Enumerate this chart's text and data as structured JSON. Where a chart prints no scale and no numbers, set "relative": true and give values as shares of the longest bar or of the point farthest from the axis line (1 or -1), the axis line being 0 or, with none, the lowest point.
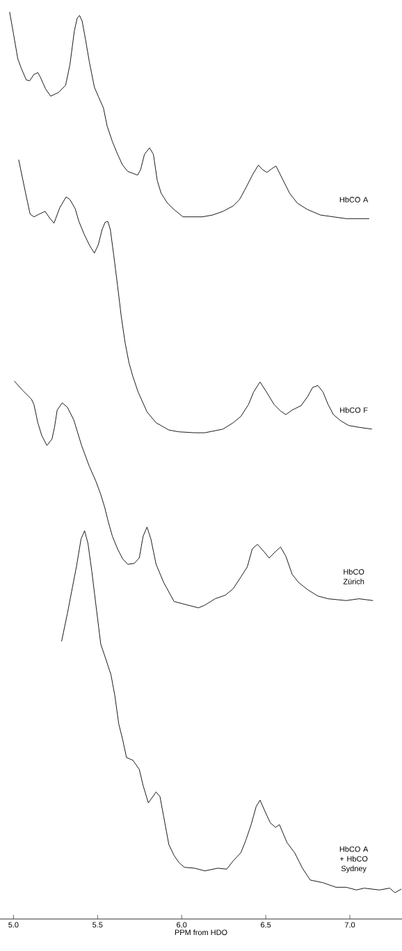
{
  "chart_data": {
    "type": "line",
    "relative": true,
    "xlabel": "PPM   from   HDO",
    "xlim": [
      4.92,
      7.31
    ],
    "xticks": [
      {
        "value": 5,
        "label": "5.0"
      },
      5.5,
      {
        "value": 6,
        "label": "6.0"
      },
      6.5,
      {
        "value": 7,
        "label": "7.0"
      }
    ],
    "series": [
      {
        "name": "HbCO A",
        "color": "#000000",
        "x": [
          4.977,
          5.0,
          5.026,
          5.046,
          5.076,
          5.096,
          5.122,
          5.145,
          5.16,
          5.191,
          5.221,
          5.267,
          5.31,
          5.336,
          5.362,
          5.379,
          5.393,
          5.408,
          5.428,
          5.451,
          5.481,
          5.504,
          5.535,
          5.557,
          5.588,
          5.619,
          5.649,
          5.68,
          5.71,
          5.738,
          5.756,
          5.779,
          5.809,
          5.832,
          5.855,
          5.878,
          5.916,
          5.955,
          6.008,
          6.077,
          6.123,
          6.184,
          6.245,
          6.306,
          6.344,
          6.382,
          6.42,
          6.456,
          6.481,
          6.507,
          6.535,
          6.561,
          6.596,
          6.642,
          6.688,
          6.749,
          6.825,
          6.902,
          6.978,
          7.054,
          7.115
        ],
        "values": [
          1.0,
          0.976,
          0.948,
          0.938,
          0.925,
          0.924,
          0.931,
          0.933,
          0.928,
          0.915,
          0.907,
          0.911,
          0.919,
          0.942,
          0.979,
          0.993,
          0.996,
          0.99,
          0.97,
          0.945,
          0.917,
          0.907,
          0.894,
          0.874,
          0.857,
          0.843,
          0.831,
          0.824,
          0.822,
          0.82,
          0.826,
          0.843,
          0.85,
          0.843,
          0.814,
          0.8,
          0.789,
          0.782,
          0.774,
          0.774,
          0.774,
          0.776,
          0.78,
          0.786,
          0.793,
          0.806,
          0.82,
          0.831,
          0.826,
          0.823,
          0.827,
          0.83,
          0.817,
          0.8,
          0.789,
          0.782,
          0.776,
          0.774,
          0.772,
          0.772,
          0.772
        ]
      },
      {
        "name": "HbCO F",
        "color": "#000000",
        "x": [
          5.031,
          5.069,
          5.099,
          5.122,
          5.153,
          5.188,
          5.214,
          5.241,
          5.275,
          5.313,
          5.336,
          5.367,
          5.389,
          5.42,
          5.451,
          5.481,
          5.504,
          5.527,
          5.545,
          5.561,
          5.576,
          5.596,
          5.619,
          5.641,
          5.664,
          5.687,
          5.71,
          5.741,
          5.794,
          5.848,
          5.924,
          5.985,
          6.077,
          6.138,
          6.245,
          6.306,
          6.352,
          6.397,
          6.428,
          6.466,
          6.504,
          6.55,
          6.588,
          6.619,
          6.657,
          6.711,
          6.749,
          6.779,
          6.81,
          6.84,
          6.871,
          6.902,
          6.947,
          6.993,
          7.054,
          7.131
        ],
        "values": [
          0.837,
          0.803,
          0.777,
          0.774,
          0.777,
          0.78,
          0.773,
          0.767,
          0.784,
          0.796,
          0.793,
          0.783,
          0.769,
          0.755,
          0.743,
          0.734,
          0.743,
          0.76,
          0.768,
          0.769,
          0.76,
          0.732,
          0.698,
          0.664,
          0.635,
          0.613,
          0.598,
          0.581,
          0.559,
          0.547,
          0.539,
          0.537,
          0.536,
          0.536,
          0.54,
          0.547,
          0.554,
          0.567,
          0.581,
          0.592,
          0.581,
          0.567,
          0.56,
          0.556,
          0.561,
          0.566,
          0.576,
          0.586,
          0.588,
          0.581,
          0.567,
          0.556,
          0.549,
          0.544,
          0.542,
          0.54
        ]
      },
      {
        "name": "HbCO Zürich",
        "color": "#000000",
        "x": [
          5.005,
          5.053,
          5.107,
          5.122,
          5.145,
          5.168,
          5.199,
          5.229,
          5.244,
          5.26,
          5.29,
          5.321,
          5.359,
          5.405,
          5.451,
          5.489,
          5.519,
          5.542,
          5.565,
          5.588,
          5.619,
          5.649,
          5.68,
          5.718,
          5.748,
          5.771,
          5.794,
          5.817,
          5.848,
          5.893,
          5.955,
          6.016,
          6.1,
          6.138,
          6.199,
          6.26,
          6.306,
          6.352,
          6.39,
          6.42,
          6.451,
          6.489,
          6.52,
          6.558,
          6.588,
          6.619,
          6.657,
          6.695,
          6.749,
          6.81,
          6.871,
          6.978,
          7.054,
          7.138
        ],
        "values": [
          0.593,
          0.583,
          0.573,
          0.567,
          0.547,
          0.533,
          0.522,
          0.529,
          0.542,
          0.561,
          0.569,
          0.564,
          0.55,
          0.522,
          0.499,
          0.483,
          0.468,
          0.454,
          0.437,
          0.422,
          0.408,
          0.397,
          0.391,
          0.392,
          0.398,
          0.422,
          0.432,
          0.419,
          0.391,
          0.371,
          0.35,
          0.347,
          0.343,
          0.346,
          0.353,
          0.357,
          0.364,
          0.377,
          0.388,
          0.408,
          0.413,
          0.405,
          0.398,
          0.405,
          0.41,
          0.4,
          0.38,
          0.371,
          0.363,
          0.356,
          0.353,
          0.351,
          0.353,
          0.351
        ]
      },
      {
        "name": "HbCO A + HbCO Sydney",
        "color": "#000000",
        "x": [
          5.286,
          5.321,
          5.351,
          5.374,
          5.402,
          5.423,
          5.443,
          5.466,
          5.489,
          5.519,
          5.55,
          5.58,
          5.603,
          5.626,
          5.649,
          5.672,
          5.71,
          5.748,
          5.771,
          5.802,
          5.825,
          5.848,
          5.871,
          5.893,
          5.924,
          5.955,
          5.985,
          6.016,
          6.077,
          6.138,
          6.214,
          6.268,
          6.306,
          6.352,
          6.382,
          6.413,
          6.443,
          6.466,
          6.497,
          6.527,
          6.558,
          6.581,
          6.627,
          6.672,
          6.718,
          6.764,
          6.84,
          6.917,
          6.978,
          7.039,
          7.085,
          7.176,
          7.237,
          7.268,
          7.306
        ],
        "values": [
          0.306,
          0.337,
          0.366,
          0.388,
          0.419,
          0.428,
          0.414,
          0.383,
          0.348,
          0.303,
          0.286,
          0.269,
          0.246,
          0.215,
          0.198,
          0.178,
          0.175,
          0.165,
          0.147,
          0.128,
          0.134,
          0.14,
          0.135,
          0.113,
          0.082,
          0.07,
          0.062,
          0.057,
          0.056,
          0.053,
          0.056,
          0.055,
          0.064,
          0.073,
          0.087,
          0.104,
          0.124,
          0.131,
          0.118,
          0.106,
          0.101,
          0.104,
          0.084,
          0.073,
          0.056,
          0.043,
          0.04,
          0.035,
          0.035,
          0.032,
          0.034,
          0.032,
          0.034,
          0.029,
          0.033
        ]
      }
    ]
  }
}
